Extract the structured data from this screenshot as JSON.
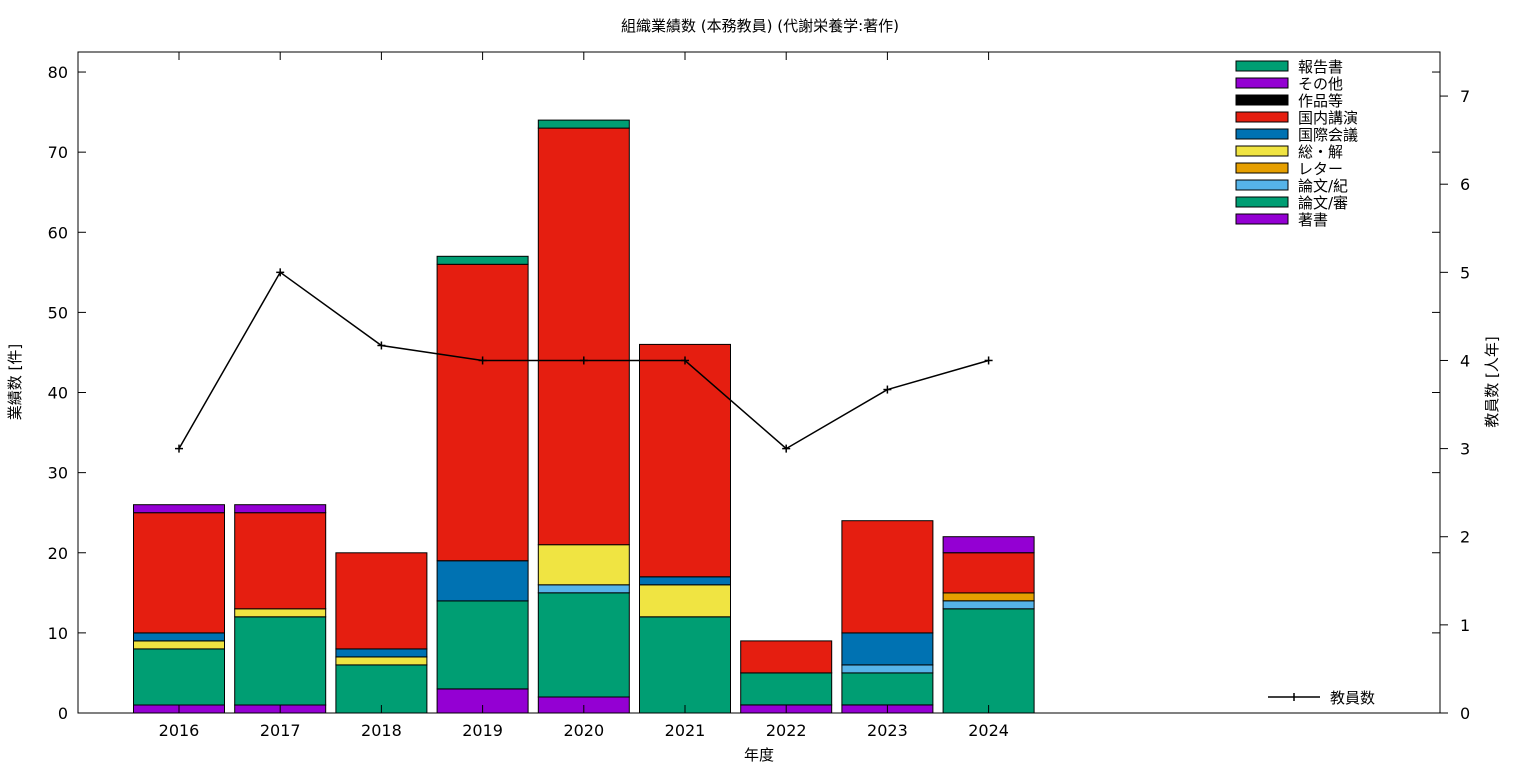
{
  "chart_data": {
    "type": "bar",
    "stacked": true,
    "title": "組織業績数 (本務教員) (代謝栄養学:著作)",
    "xlabel": "年度",
    "ylabel": "業績数 [件]",
    "y2label": "教員数 [人年]",
    "ylim": [
      0,
      82.5
    ],
    "y2lim": [
      0,
      7.5
    ],
    "yticks": [
      0,
      10,
      20,
      30,
      40,
      50,
      60,
      70,
      80
    ],
    "y2ticks": [
      0,
      1,
      2,
      3,
      4,
      5,
      6,
      7
    ],
    "categories": [
      "2016",
      "2017",
      "2018",
      "2019",
      "2020",
      "2021",
      "2022",
      "2023",
      "2024"
    ],
    "series": [
      {
        "name": "著書",
        "color": "#9400d3",
        "values": [
          1,
          1,
          0,
          3,
          2,
          0,
          1,
          1,
          0
        ]
      },
      {
        "name": "論文/審",
        "color": "#009e73",
        "values": [
          7,
          11,
          6,
          11,
          13,
          12,
          4,
          4,
          13
        ]
      },
      {
        "name": "論文/紀",
        "color": "#56b4e9",
        "values": [
          0,
          0,
          0,
          0,
          1,
          0,
          0,
          1,
          1
        ]
      },
      {
        "name": "レター",
        "color": "#e69f00",
        "values": [
          0,
          0,
          0,
          0,
          0,
          0,
          0,
          0,
          1
        ]
      },
      {
        "name": "総・解",
        "color": "#f0e442",
        "values": [
          1,
          1,
          1,
          0,
          5,
          4,
          0,
          0,
          0
        ]
      },
      {
        "name": "国際会議",
        "color": "#0072b2",
        "values": [
          1,
          0,
          1,
          5,
          0,
          1,
          0,
          4,
          0
        ]
      },
      {
        "name": "国内講演",
        "color": "#e51e10",
        "values": [
          15,
          12,
          12,
          37,
          52,
          29,
          4,
          14,
          5
        ]
      },
      {
        "name": "作品等",
        "color": "#000000",
        "values": [
          0,
          0,
          0,
          0,
          0,
          0,
          0,
          0,
          0
        ]
      },
      {
        "name": "その他",
        "color": "#9400d3",
        "values": [
          1,
          1,
          0,
          0,
          0,
          0,
          0,
          0,
          2
        ]
      },
      {
        "name": "報告書",
        "color": "#009e73",
        "values": [
          0,
          0,
          0,
          1,
          1,
          0,
          0,
          0,
          0
        ]
      }
    ],
    "line": {
      "name": "教員数",
      "axis": "y2",
      "values": [
        3,
        5,
        4.17,
        4,
        4,
        4,
        3,
        3.67,
        4
      ]
    },
    "legend_position": "top-right",
    "grid": false
  }
}
